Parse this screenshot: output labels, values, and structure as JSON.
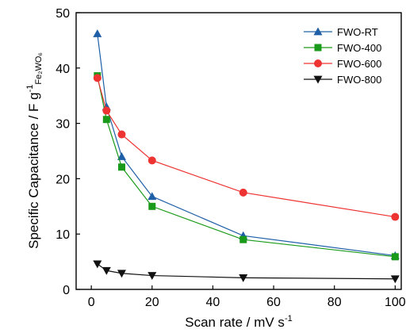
{
  "chart_data": {
    "type": "line",
    "xlabel": "Scan rate / mV s",
    "xlabel_sup": "-1",
    "ylabel": "Specific Capacitance / F g",
    "ylabel_sup": "-1",
    "ylabel_sub": "Fe₂WO₆",
    "xlim": [
      -5,
      102
    ],
    "ylim": [
      0,
      50
    ],
    "xticks": [
      0,
      20,
      40,
      60,
      80,
      100
    ],
    "yticks": [
      0,
      10,
      20,
      30,
      40,
      50
    ],
    "legend_position": "top-right",
    "grid": false,
    "x": [
      2,
      5,
      10,
      20,
      50,
      100
    ],
    "series": [
      {
        "name": "FWO-RT",
        "color": "#1f5fa8",
        "marker": "triangle-up",
        "values": [
          46.2,
          33.0,
          24.0,
          16.8,
          9.7,
          6.1
        ]
      },
      {
        "name": "FWO-400",
        "color": "#1a9a1a",
        "marker": "square",
        "values": [
          38.6,
          30.7,
          22.1,
          15.0,
          9.0,
          5.9
        ]
      },
      {
        "name": "FWO-600",
        "color": "#ee3333",
        "marker": "circle",
        "values": [
          38.2,
          32.3,
          28.0,
          23.3,
          17.5,
          13.1
        ]
      },
      {
        "name": "FWO-800",
        "color": "#111111",
        "marker": "triangle-down",
        "values": [
          4.6,
          3.4,
          2.9,
          2.5,
          2.1,
          1.9
        ]
      }
    ]
  }
}
